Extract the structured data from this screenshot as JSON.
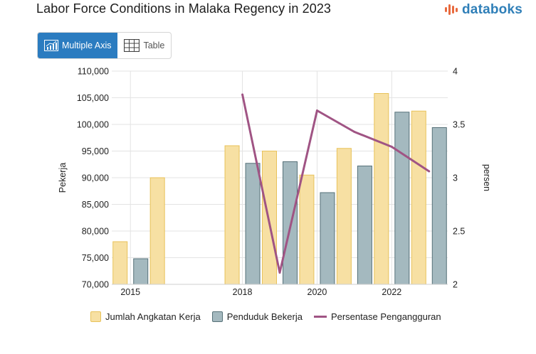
{
  "title": "Labor Force Conditions in Malaka Regency in 2023",
  "brand": {
    "name": "databoks",
    "color": "#2f7fb8",
    "accent": "#e86a3e"
  },
  "toolbar": {
    "multiple_axis_label": "Multiple Axis",
    "table_label": "Table",
    "active_color": "#2b7cc0"
  },
  "chart_data": {
    "type": "bar",
    "title": "Labor Force Conditions in Malaka Regency in 2023",
    "x": [
      2015,
      2016,
      2017,
      2018,
      2019,
      2020,
      2021,
      2022,
      2023
    ],
    "x_tick_labels": [
      "2015",
      "2018",
      "2020",
      "2022"
    ],
    "x_tick_values": [
      2015,
      2018,
      2020,
      2022
    ],
    "series": [
      {
        "name": "Jumlah Angkatan Kerja",
        "type": "bar",
        "axis": "left",
        "color": "#f7e0a3",
        "stroke": "#e8c25a",
        "values": [
          78000,
          90000,
          null,
          96000,
          95000,
          90500,
          95500,
          105800,
          102500
        ]
      },
      {
        "name": "Penduduk Bekerja",
        "type": "bar",
        "axis": "left",
        "color": "#a4b9bf",
        "stroke": "#567178",
        "values": [
          74800,
          null,
          null,
          92700,
          93000,
          87200,
          92200,
          102300,
          99400
        ]
      },
      {
        "name": "Persentase Pengangguran",
        "type": "line",
        "axis": "right",
        "color": "#a05484",
        "values": [
          null,
          null,
          null,
          3.78,
          2.11,
          3.63,
          3.43,
          3.29,
          3.06
        ]
      }
    ],
    "ylabel": "Pekerja",
    "ylim": [
      70000,
      110000
    ],
    "y_ticks": [
      "70,000",
      "75,000",
      "80,000",
      "85,000",
      "90,000",
      "95,000",
      "100,000",
      "105,000",
      "110,000"
    ],
    "y2label": "persen",
    "y2lim": [
      2,
      4
    ],
    "y2_ticks": [
      "2",
      "2.5",
      "3",
      "3.5",
      "4"
    ],
    "grid": true,
    "legend_position": "bottom"
  }
}
